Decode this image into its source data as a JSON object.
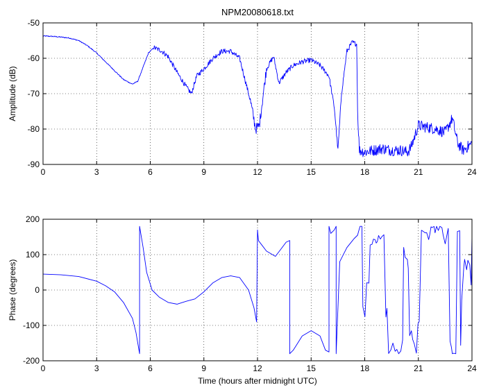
{
  "figure": {
    "title": "NPM20080618.txt",
    "xlabel": "Time (hours after midnight UTC)"
  },
  "colors": {
    "trace": "#0000ff",
    "axis": "#000000",
    "grid": "#000000",
    "background": "#ffffff"
  },
  "chart_data": [
    {
      "type": "line",
      "title": "NPM20080618.txt",
      "xlabel": "",
      "ylabel": "Amplitude (dB)",
      "xlim": [
        0,
        24
      ],
      "ylim": [
        -90,
        -50
      ],
      "xticks": [
        0,
        3,
        6,
        9,
        12,
        15,
        18,
        21,
        24
      ],
      "yticks": [
        -90,
        -80,
        -70,
        -60,
        -50
      ],
      "grid": true,
      "series": [
        {
          "x": [
            0,
            0.5,
            1,
            1.5,
            2,
            2.5,
            3,
            3.5,
            4,
            4.5,
            5,
            5.3,
            5.6,
            5.9,
            6.2,
            6.6,
            7,
            7.5,
            8,
            8.3,
            8.6,
            9,
            9.5,
            10,
            10.5,
            11,
            11.3,
            11.6,
            11.9,
            12.1,
            12.5,
            12.9,
            13.2,
            13.6,
            14,
            14.5,
            15,
            15.5,
            16,
            16.3,
            16.5,
            16.7,
            17,
            17.3,
            17.55,
            17.6,
            17.7,
            18,
            18.5,
            19,
            19.5,
            20,
            20.4,
            20.6,
            21,
            21.5,
            22,
            22.5,
            22.9,
            23.2,
            23.5,
            24
          ],
          "values": [
            -53.7,
            -53.8,
            -54,
            -54.3,
            -55,
            -56.5,
            -58.5,
            -61,
            -63.5,
            -66,
            -67.3,
            -66.5,
            -62.5,
            -58.5,
            -57,
            -57.8,
            -59.5,
            -64,
            -68,
            -70,
            -65,
            -63,
            -60,
            -58,
            -58,
            -60,
            -66,
            -72,
            -80,
            -79,
            -63,
            -59.5,
            -67,
            -64,
            -62,
            -61,
            -60.5,
            -62,
            -65,
            -74,
            -86,
            -70,
            -58,
            -55.5,
            -56,
            -75,
            -86,
            -86.5,
            -86,
            -85.5,
            -86,
            -86,
            -86.5,
            -85,
            -79,
            -79.5,
            -80,
            -81,
            -77,
            -84,
            -86,
            -84
          ]
        }
      ]
    },
    {
      "type": "line",
      "title": "",
      "xlabel": "Time (hours after midnight UTC)",
      "ylabel": "Phase (degrees)",
      "xlim": [
        0,
        24
      ],
      "ylim": [
        -200,
        200
      ],
      "xticks": [
        0,
        3,
        6,
        9,
        12,
        15,
        18,
        21,
        24
      ],
      "yticks": [
        -200,
        -100,
        0,
        100,
        200
      ],
      "grid": true,
      "series": [
        {
          "x": [
            0,
            1,
            2,
            3,
            3.5,
            4,
            4.5,
            5,
            5.2,
            5.4,
            5.4,
            5.6,
            5.8,
            6.1,
            6.5,
            7,
            7.5,
            8,
            8.5,
            9,
            9.5,
            10,
            10.5,
            11,
            11.5,
            11.8,
            11.95,
            12,
            12.05,
            12.2,
            12.5,
            13,
            13.3,
            13.6,
            13.8,
            13.8,
            14,
            14.5,
            15,
            15.5,
            15.8,
            16,
            16,
            16.1,
            16.3,
            16.4,
            16.4,
            16.6,
            17,
            17.4,
            17.6
          ],
          "values": [
            45,
            43,
            38,
            25,
            12,
            -5,
            -35,
            -80,
            -120,
            -180,
            180,
            120,
            50,
            0,
            -20,
            -35,
            -40,
            -32,
            -25,
            -5,
            20,
            35,
            40,
            35,
            0,
            -50,
            -90,
            170,
            140,
            130,
            110,
            95,
            115,
            135,
            140,
            -180,
            -170,
            -130,
            -115,
            -130,
            -170,
            -175,
            180,
            160,
            170,
            180,
            -180,
            80,
            120,
            145,
            155
          ]
        }
      ],
      "noisy_region": {
        "x_range": [
          17.6,
          24
        ],
        "y_range": [
          -180,
          180
        ]
      }
    }
  ]
}
